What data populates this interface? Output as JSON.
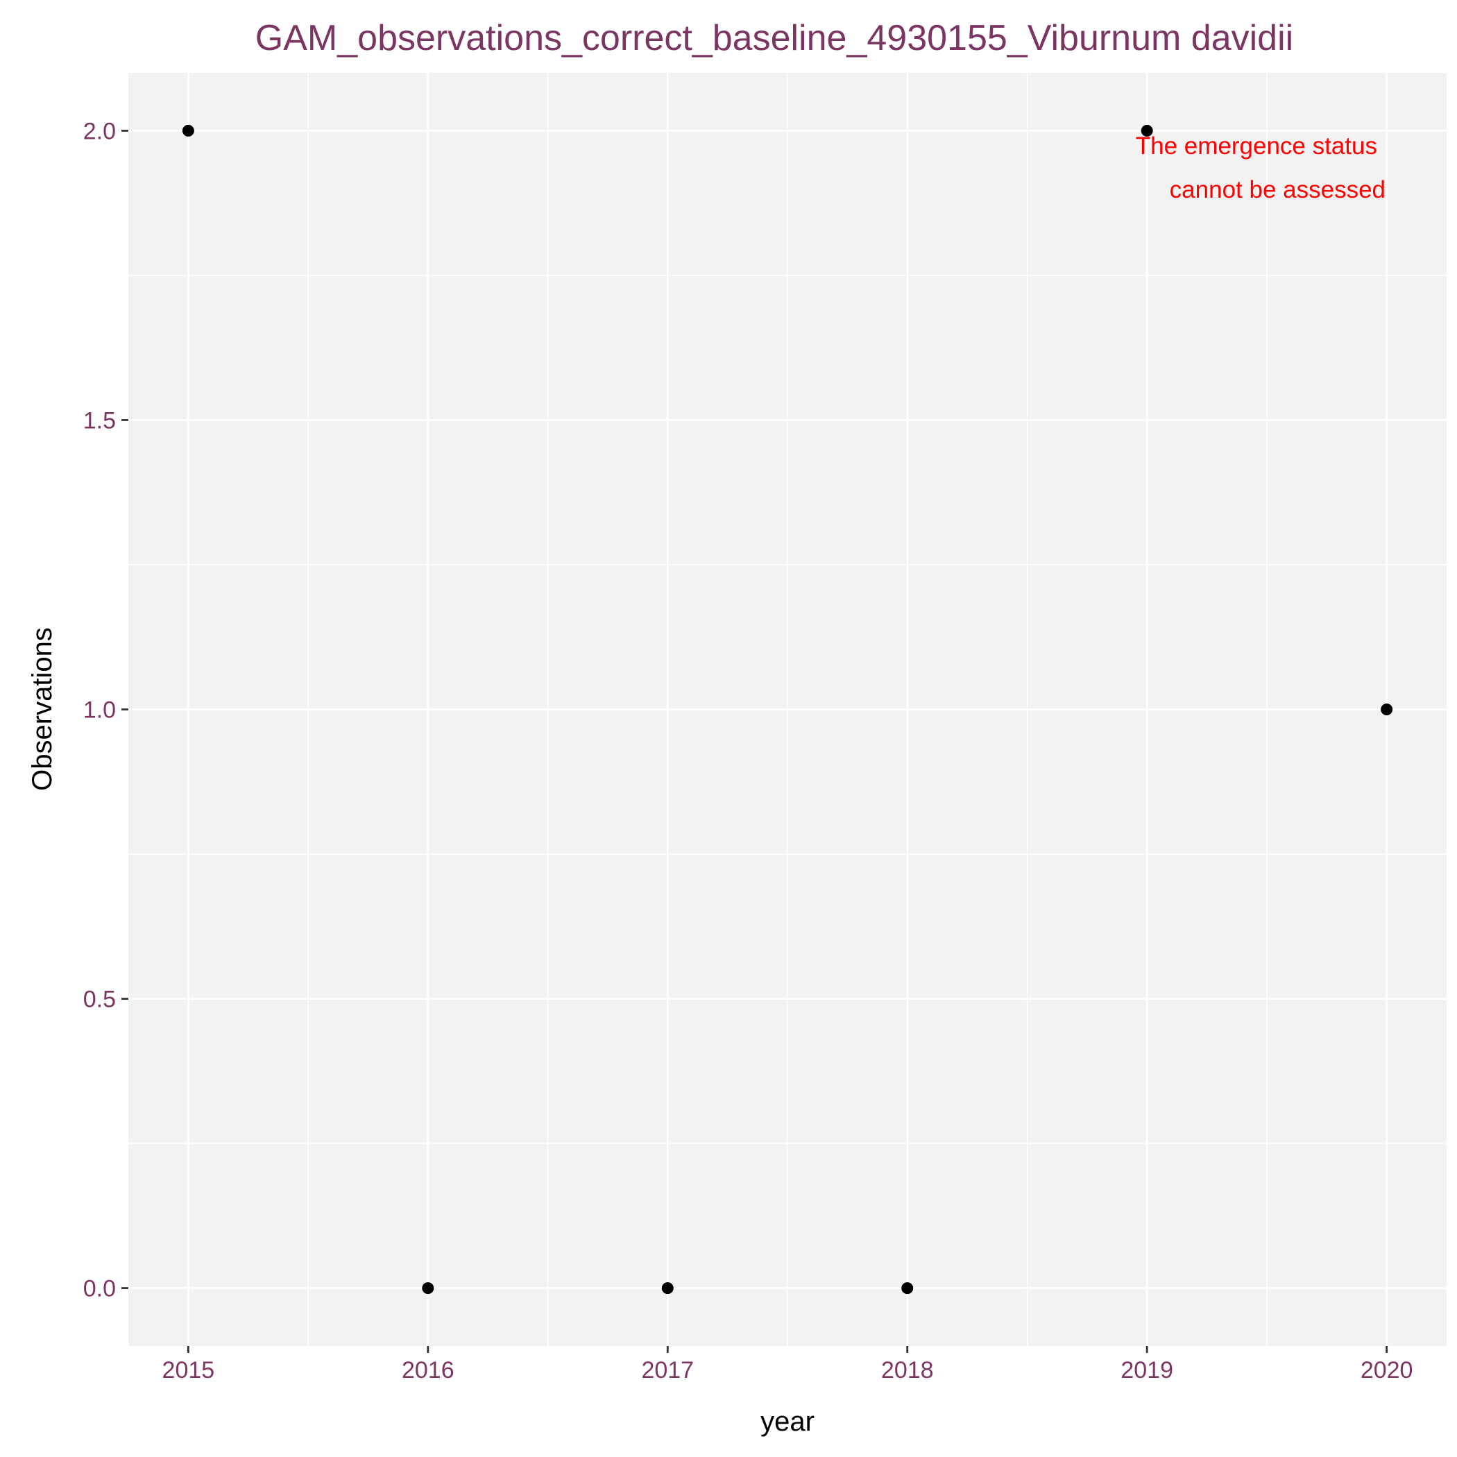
{
  "chart_data": {
    "type": "scatter",
    "title": "GAM_observations_correct_baseline_4930155_Viburnum davidii",
    "xlabel": "year",
    "ylabel": "Observations",
    "x": [
      2015,
      2016,
      2017,
      2018,
      2019,
      2020
    ],
    "y": [
      2,
      0,
      0,
      0,
      2,
      1
    ],
    "x_ticks": [
      "2015",
      "2016",
      "2017",
      "2018",
      "2019",
      "2020"
    ],
    "y_ticks": [
      "0.0",
      "0.5",
      "1.0",
      "1.5",
      "2.0"
    ],
    "xlim": [
      2014.75,
      2020.25
    ],
    "ylim": [
      -0.1,
      2.1
    ],
    "grid": true,
    "annotation": [
      "The emergence status",
      "cannot be assessed"
    ],
    "colors": {
      "title": "#7b3561",
      "tick_labels": "#7b3561",
      "panel_background": "#f2f2f2",
      "grid": "#ffffff",
      "points": "#000000",
      "annotation": "#ff0000"
    }
  }
}
